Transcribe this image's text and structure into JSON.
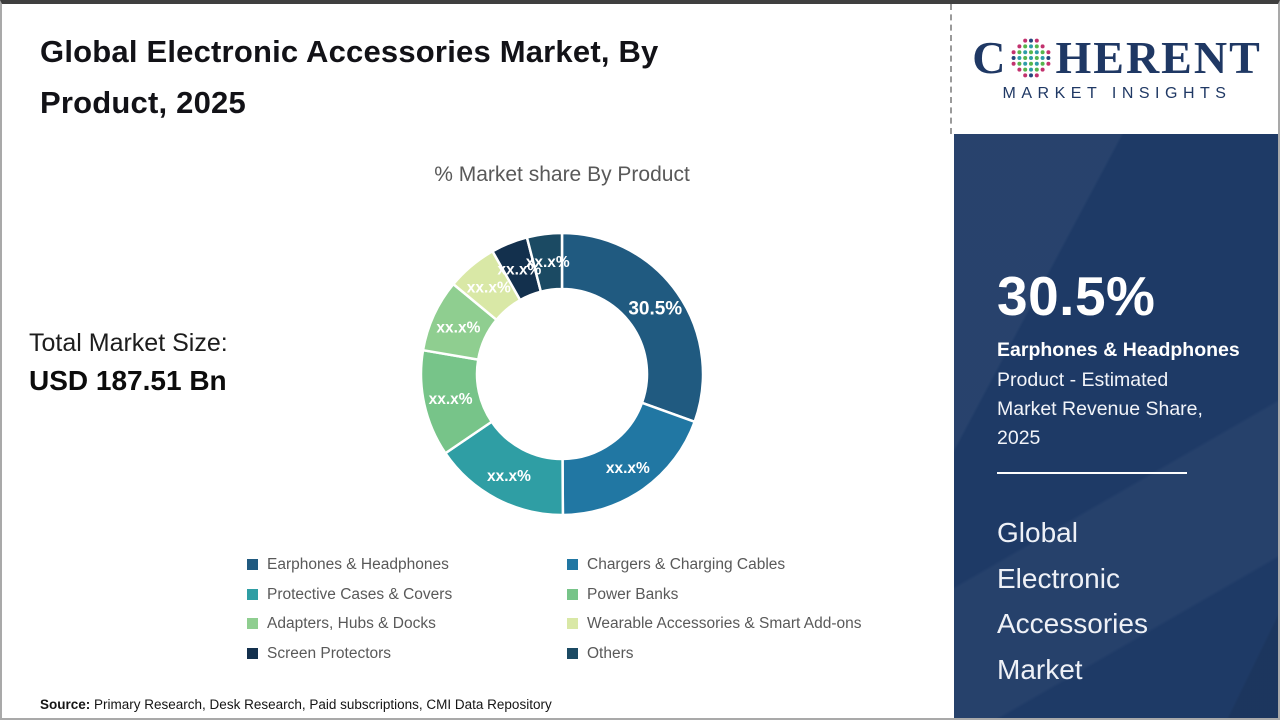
{
  "header": {
    "title": "Global Electronic Accessories Market, By\nProduct, 2025"
  },
  "chart": {
    "title": "% Market share By Product"
  },
  "market_size": {
    "label": "Total Market Size:",
    "value": "USD 187.51 Bn"
  },
  "source": {
    "label": "Source:",
    "text": "Primary Research, Desk Research, Paid subscriptions, CMI Data Repository"
  },
  "sidebar": {
    "logo": {
      "text_before_globe": "C",
      "text_after_globe": "HERENT",
      "subtitle": "MARKET INSIGHTS",
      "brand_color": "#1f3864",
      "globe_colors": {
        "teal": "#2d9ca8",
        "green": "#56b54c",
        "pink": "#c2326e",
        "navy": "#24477d"
      }
    },
    "panel_color": "#1e3a66",
    "stat": {
      "value": "30.5%",
      "product": "Earphones & Headphones",
      "description": "Product - Estimated Market Revenue Share, 2025"
    },
    "market_name": "Global\nElectronic\nAccessories\nMarket"
  },
  "chart_data": {
    "type": "pie",
    "donut": true,
    "title": "% Market share By Product",
    "legend_position": "bottom",
    "label_color": "#ffffff",
    "segments": [
      {
        "name": "Earphones & Headphones",
        "label": "30.5%",
        "share_pct": 30.5,
        "color": "#205a80"
      },
      {
        "name": "Chargers & Charging Cables",
        "label": "xx.x%",
        "share_pct": 19.4,
        "color": "#2177a3"
      },
      {
        "name": "Protective Cases & Covers",
        "label": "xx.x%",
        "share_pct": 15.6,
        "color": "#2f9ea4"
      },
      {
        "name": "Power Banks",
        "label": "xx.x%",
        "share_pct": 12.2,
        "color": "#77c489"
      },
      {
        "name": "Adapters, Hubs & Docks",
        "label": "xx.x%",
        "share_pct": 8.3,
        "color": "#8fce90"
      },
      {
        "name": "Wearable Accessories & Smart Add-ons",
        "label": "xx.x%",
        "share_pct": 5.8,
        "color": "#d9e8a6"
      },
      {
        "name": "Screen Protectors",
        "label": "xx.x%",
        "share_pct": 4.2,
        "color": "#13304d"
      },
      {
        "name": "Others",
        "label": "xx.x%",
        "share_pct": 4.0,
        "color": "#1b4a63"
      }
    ]
  }
}
